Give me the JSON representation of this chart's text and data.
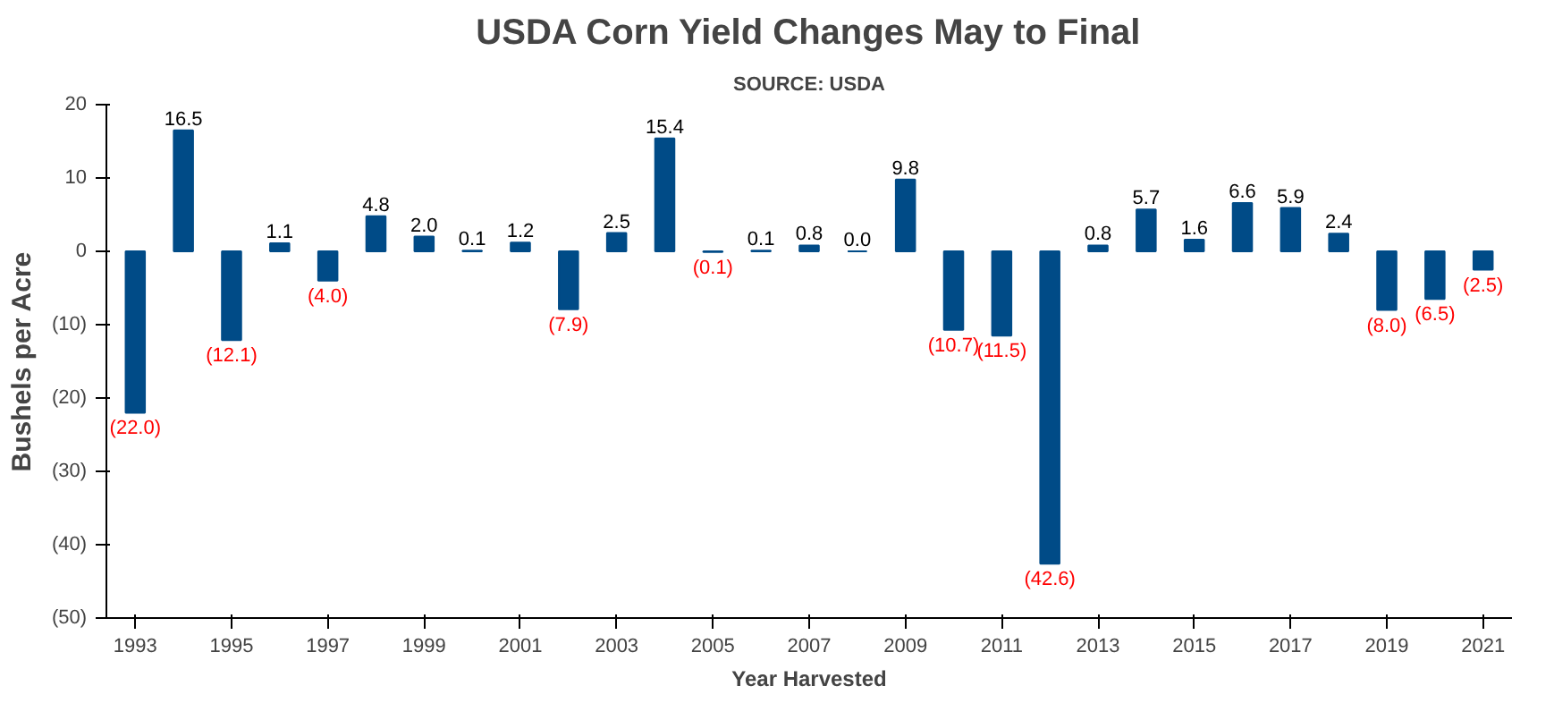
{
  "chart_data": {
    "type": "bar",
    "title": "USDA Corn Yield Changes May to Final",
    "subtitle": "SOURCE: USDA",
    "xlabel": "Year Harvested",
    "ylabel": "Bushels per Acre",
    "categories": [
      "1993",
      null,
      "1995",
      null,
      "1997",
      null,
      "1999",
      null,
      "2001",
      null,
      "2003",
      null,
      "2005",
      null,
      "2007",
      null,
      "2009",
      null,
      "2011",
      null,
      "2013",
      null,
      "2015",
      null,
      "2017",
      null,
      "2019",
      null,
      "2021"
    ],
    "values": [
      -22.0,
      16.5,
      -12.1,
      1.1,
      -4.0,
      4.8,
      2.0,
      0.1,
      1.2,
      -7.9,
      2.5,
      15.4,
      -0.1,
      0.1,
      0.8,
      0.0,
      9.8,
      -10.7,
      -11.5,
      -42.6,
      0.8,
      5.7,
      1.6,
      6.6,
      5.9,
      2.4,
      -8.0,
      -6.5,
      -2.5
    ],
    "value_labels": [
      "(22.0)",
      "16.5",
      "(12.1)",
      "1.1",
      "(4.0)",
      "4.8",
      "2.0",
      "0.1",
      "1.2",
      "(7.9)",
      "2.5",
      "15.4",
      "(0.1)",
      "0.1",
      "0.8",
      "0.0",
      "9.8",
      "(10.7)",
      "(11.5)",
      "(42.6)",
      "0.8",
      "5.7",
      "1.6",
      "6.6",
      "5.9",
      "2.4",
      "(8.0)",
      "(6.5)",
      "(2.5)"
    ],
    "color": "#004b87",
    "ylim": [
      -50,
      20
    ],
    "yticks": [
      {
        "value": -50,
        "label": "(50)"
      },
      {
        "value": -40,
        "label": "(40)"
      },
      {
        "value": -30,
        "label": "(30)"
      },
      {
        "value": -20,
        "label": "(20)"
      },
      {
        "value": -10,
        "label": "(10)"
      },
      0,
      10,
      20
    ],
    "grid": false
  }
}
